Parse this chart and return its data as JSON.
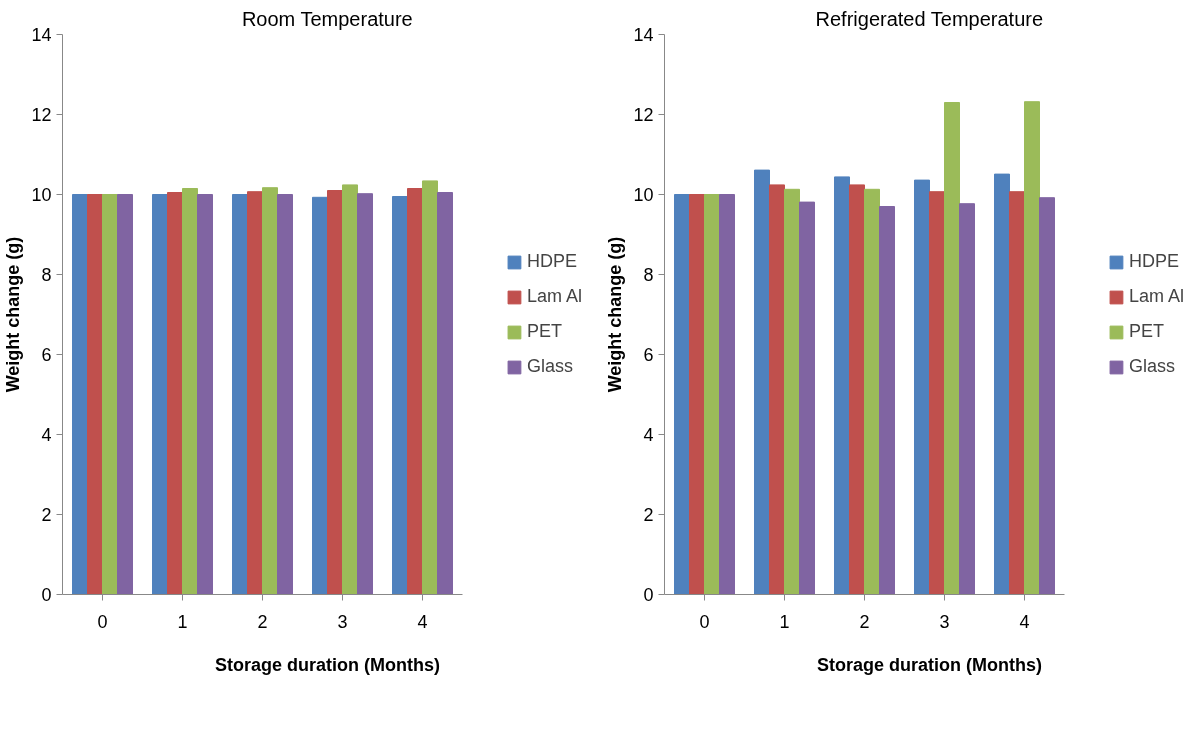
{
  "chart_data": [
    {
      "type": "bar",
      "title": "Room Temperature",
      "xlabel": "Storage duration (Months)",
      "ylabel": "Weight change (g)",
      "categories": [
        "0",
        "1",
        "2",
        "3",
        "4"
      ],
      "ylim": [
        0,
        14
      ],
      "yticks": [
        0,
        2,
        4,
        6,
        8,
        10,
        12,
        14
      ],
      "grid": false,
      "legend": "right",
      "series": [
        {
          "name": "HDPE",
          "color": "#4f81bd",
          "values": [
            10.0,
            10.0,
            10.0,
            9.93,
            9.95
          ]
        },
        {
          "name": "Lam Al",
          "color": "#c0504d",
          "values": [
            10.0,
            10.05,
            10.07,
            10.1,
            10.15
          ]
        },
        {
          "name": "PET",
          "color": "#9bbb59",
          "values": [
            10.0,
            10.15,
            10.17,
            10.24,
            10.34
          ]
        },
        {
          "name": "Glass",
          "color": "#8064a2",
          "values": [
            10.0,
            10.0,
            10.0,
            10.02,
            10.05
          ]
        }
      ]
    },
    {
      "type": "bar",
      "title": "Refrigerated Temperature",
      "xlabel": "Storage duration (Months)",
      "ylabel": "Weight change (g)",
      "categories": [
        "0",
        "1",
        "2",
        "3",
        "4"
      ],
      "ylim": [
        0,
        14
      ],
      "yticks": [
        0,
        2,
        4,
        6,
        8,
        10,
        12,
        14
      ],
      "grid": false,
      "legend": "right",
      "series": [
        {
          "name": "HDPE",
          "color": "#4f81bd",
          "values": [
            10.0,
            10.61,
            10.44,
            10.36,
            10.51
          ]
        },
        {
          "name": "Lam Al",
          "color": "#c0504d",
          "values": [
            10.0,
            10.24,
            10.24,
            10.07,
            10.07
          ]
        },
        {
          "name": "PET",
          "color": "#9bbb59",
          "values": [
            10.0,
            10.13,
            10.13,
            12.3,
            12.32
          ]
        },
        {
          "name": "Glass",
          "color": "#8064a2",
          "values": [
            10.0,
            9.81,
            9.7,
            9.77,
            9.92
          ]
        }
      ]
    }
  ]
}
